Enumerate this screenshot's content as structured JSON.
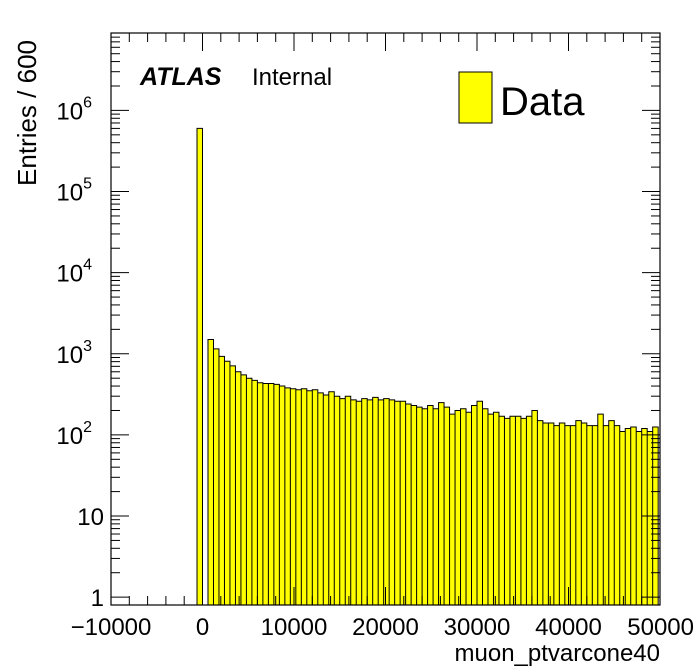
{
  "chart_data": {
    "type": "bar",
    "style": "histogram",
    "xlabel": "muon_ptvarcone40",
    "ylabel": "Entries / 600",
    "xlim": [
      -10000,
      50000
    ],
    "ylim": [
      0.8,
      9000000
    ],
    "yscale": "log",
    "grid": false,
    "bin_width": 600,
    "x_ticks": [
      {
        "value": -10000,
        "label": "−10000"
      },
      {
        "value": 0,
        "label": "0"
      },
      {
        "value": 10000,
        "label": "10000"
      },
      {
        "value": 20000,
        "label": "20000"
      },
      {
        "value": 30000,
        "label": "30000"
      },
      {
        "value": 40000,
        "label": "40000"
      },
      {
        "value": 50000,
        "label": "50000"
      }
    ],
    "y_ticks": [
      {
        "value": 1,
        "base": "1",
        "exp": ""
      },
      {
        "value": 10,
        "base": "10",
        "exp": ""
      },
      {
        "value": 100,
        "base": "10",
        "exp": "2"
      },
      {
        "value": 1000,
        "base": "10",
        "exp": "3"
      },
      {
        "value": 10000,
        "base": "10",
        "exp": "4"
      },
      {
        "value": 100000,
        "base": "10",
        "exp": "5"
      },
      {
        "value": 1000000,
        "base": "10",
        "exp": "6"
      }
    ],
    "legend": {
      "position": "top-right",
      "entries": [
        {
          "name": "Data",
          "color": "#ffff00"
        }
      ]
    },
    "fill_color": "#ffff00",
    "line_color": "#000000",
    "bins": [
      [
        -600,
        600000
      ],
      [
        0,
        0
      ],
      [
        600,
        1500
      ],
      [
        1200,
        1150
      ],
      [
        1800,
        930
      ],
      [
        2400,
        810
      ],
      [
        3000,
        710
      ],
      [
        3600,
        600
      ],
      [
        4200,
        550
      ],
      [
        4800,
        500
      ],
      [
        5400,
        470
      ],
      [
        6000,
        440
      ],
      [
        6600,
        430
      ],
      [
        7200,
        430
      ],
      [
        7800,
        420
      ],
      [
        8400,
        400
      ],
      [
        9000,
        380
      ],
      [
        9600,
        370
      ],
      [
        10200,
        360
      ],
      [
        10800,
        370
      ],
      [
        11400,
        350
      ],
      [
        12000,
        360
      ],
      [
        12600,
        330
      ],
      [
        13200,
        310
      ],
      [
        13800,
        340
      ],
      [
        14400,
        300
      ],
      [
        15000,
        280
      ],
      [
        15600,
        300
      ],
      [
        16200,
        270
      ],
      [
        16800,
        260
      ],
      [
        17400,
        280
      ],
      [
        18000,
        270
      ],
      [
        18600,
        290
      ],
      [
        19200,
        270
      ],
      [
        19800,
        280
      ],
      [
        20400,
        270
      ],
      [
        21000,
        260
      ],
      [
        21600,
        260
      ],
      [
        22200,
        240
      ],
      [
        22800,
        230
      ],
      [
        23400,
        220
      ],
      [
        24000,
        210
      ],
      [
        24600,
        230
      ],
      [
        25200,
        210
      ],
      [
        25800,
        250
      ],
      [
        26400,
        220
      ],
      [
        27000,
        180
      ],
      [
        27600,
        200
      ],
      [
        28200,
        210
      ],
      [
        28800,
        190
      ],
      [
        29400,
        230
      ],
      [
        30000,
        260
      ],
      [
        30600,
        210
      ],
      [
        31200,
        180
      ],
      [
        31800,
        190
      ],
      [
        32400,
        170
      ],
      [
        33000,
        160
      ],
      [
        33600,
        170
      ],
      [
        34200,
        170
      ],
      [
        34800,
        160
      ],
      [
        35400,
        170
      ],
      [
        36000,
        200
      ],
      [
        36600,
        150
      ],
      [
        37200,
        140
      ],
      [
        37800,
        140
      ],
      [
        38400,
        130
      ],
      [
        39000,
        140
      ],
      [
        39600,
        130
      ],
      [
        40200,
        130
      ],
      [
        40800,
        150
      ],
      [
        41400,
        140
      ],
      [
        42000,
        130
      ],
      [
        42600,
        130
      ],
      [
        43200,
        180
      ],
      [
        43800,
        130
      ],
      [
        44400,
        150
      ],
      [
        45000,
        130
      ],
      [
        45600,
        110
      ],
      [
        46200,
        120
      ],
      [
        46800,
        125
      ],
      [
        47400,
        110
      ],
      [
        48000,
        120
      ],
      [
        48600,
        110
      ],
      [
        49200,
        125
      ]
    ]
  },
  "annotations": {
    "experiment": "ATLAS",
    "status": "Internal"
  }
}
